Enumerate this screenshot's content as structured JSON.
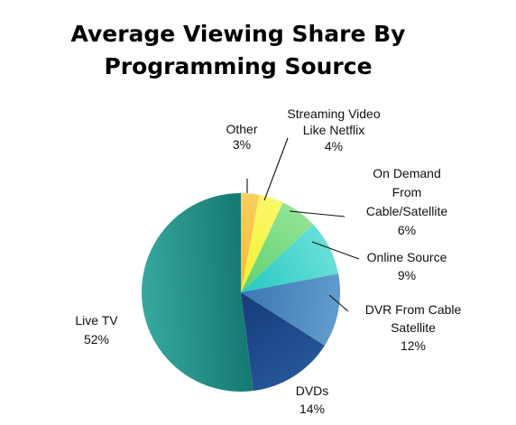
{
  "chart_data": {
    "type": "pie",
    "title_lines": [
      "Average Viewing Share By",
      "Programming Source"
    ],
    "start_angle_deg": 0,
    "direction": "clockwise",
    "slices": [
      {
        "label_lines": [
          "Other"
        ],
        "value": 3,
        "display": "3%",
        "color": "#f6b934",
        "highlight": "#fdd36a"
      },
      {
        "label_lines": [
          "Streaming Video",
          "Like Netflix"
        ],
        "value": 4,
        "display": "4%",
        "color": "#f2f02e",
        "highlight": "#fbfa78"
      },
      {
        "label_lines": [
          "On Demand",
          "From",
          "Cable/Satellite"
        ],
        "value": 6,
        "display": "6%",
        "color": "#5fd16c",
        "highlight": "#9be79e"
      },
      {
        "label_lines": [
          "Online Source"
        ],
        "value": 9,
        "display": "9%",
        "color": "#25c8c1",
        "highlight": "#77e4dd"
      },
      {
        "label_lines": [
          "DVR From Cable",
          "Satellite"
        ],
        "value": 12,
        "display": "12%",
        "color": "#3a78b3",
        "highlight": "#6aa3d2"
      },
      {
        "label_lines": [
          "DVDs"
        ],
        "value": 14,
        "display": "14%",
        "color": "#173b7a",
        "highlight": "#285a9e"
      },
      {
        "label_lines": [
          "Live TV"
        ],
        "value": 52,
        "display": "52%",
        "color": "#177b75",
        "highlight": "#3eb1a7"
      }
    ]
  }
}
